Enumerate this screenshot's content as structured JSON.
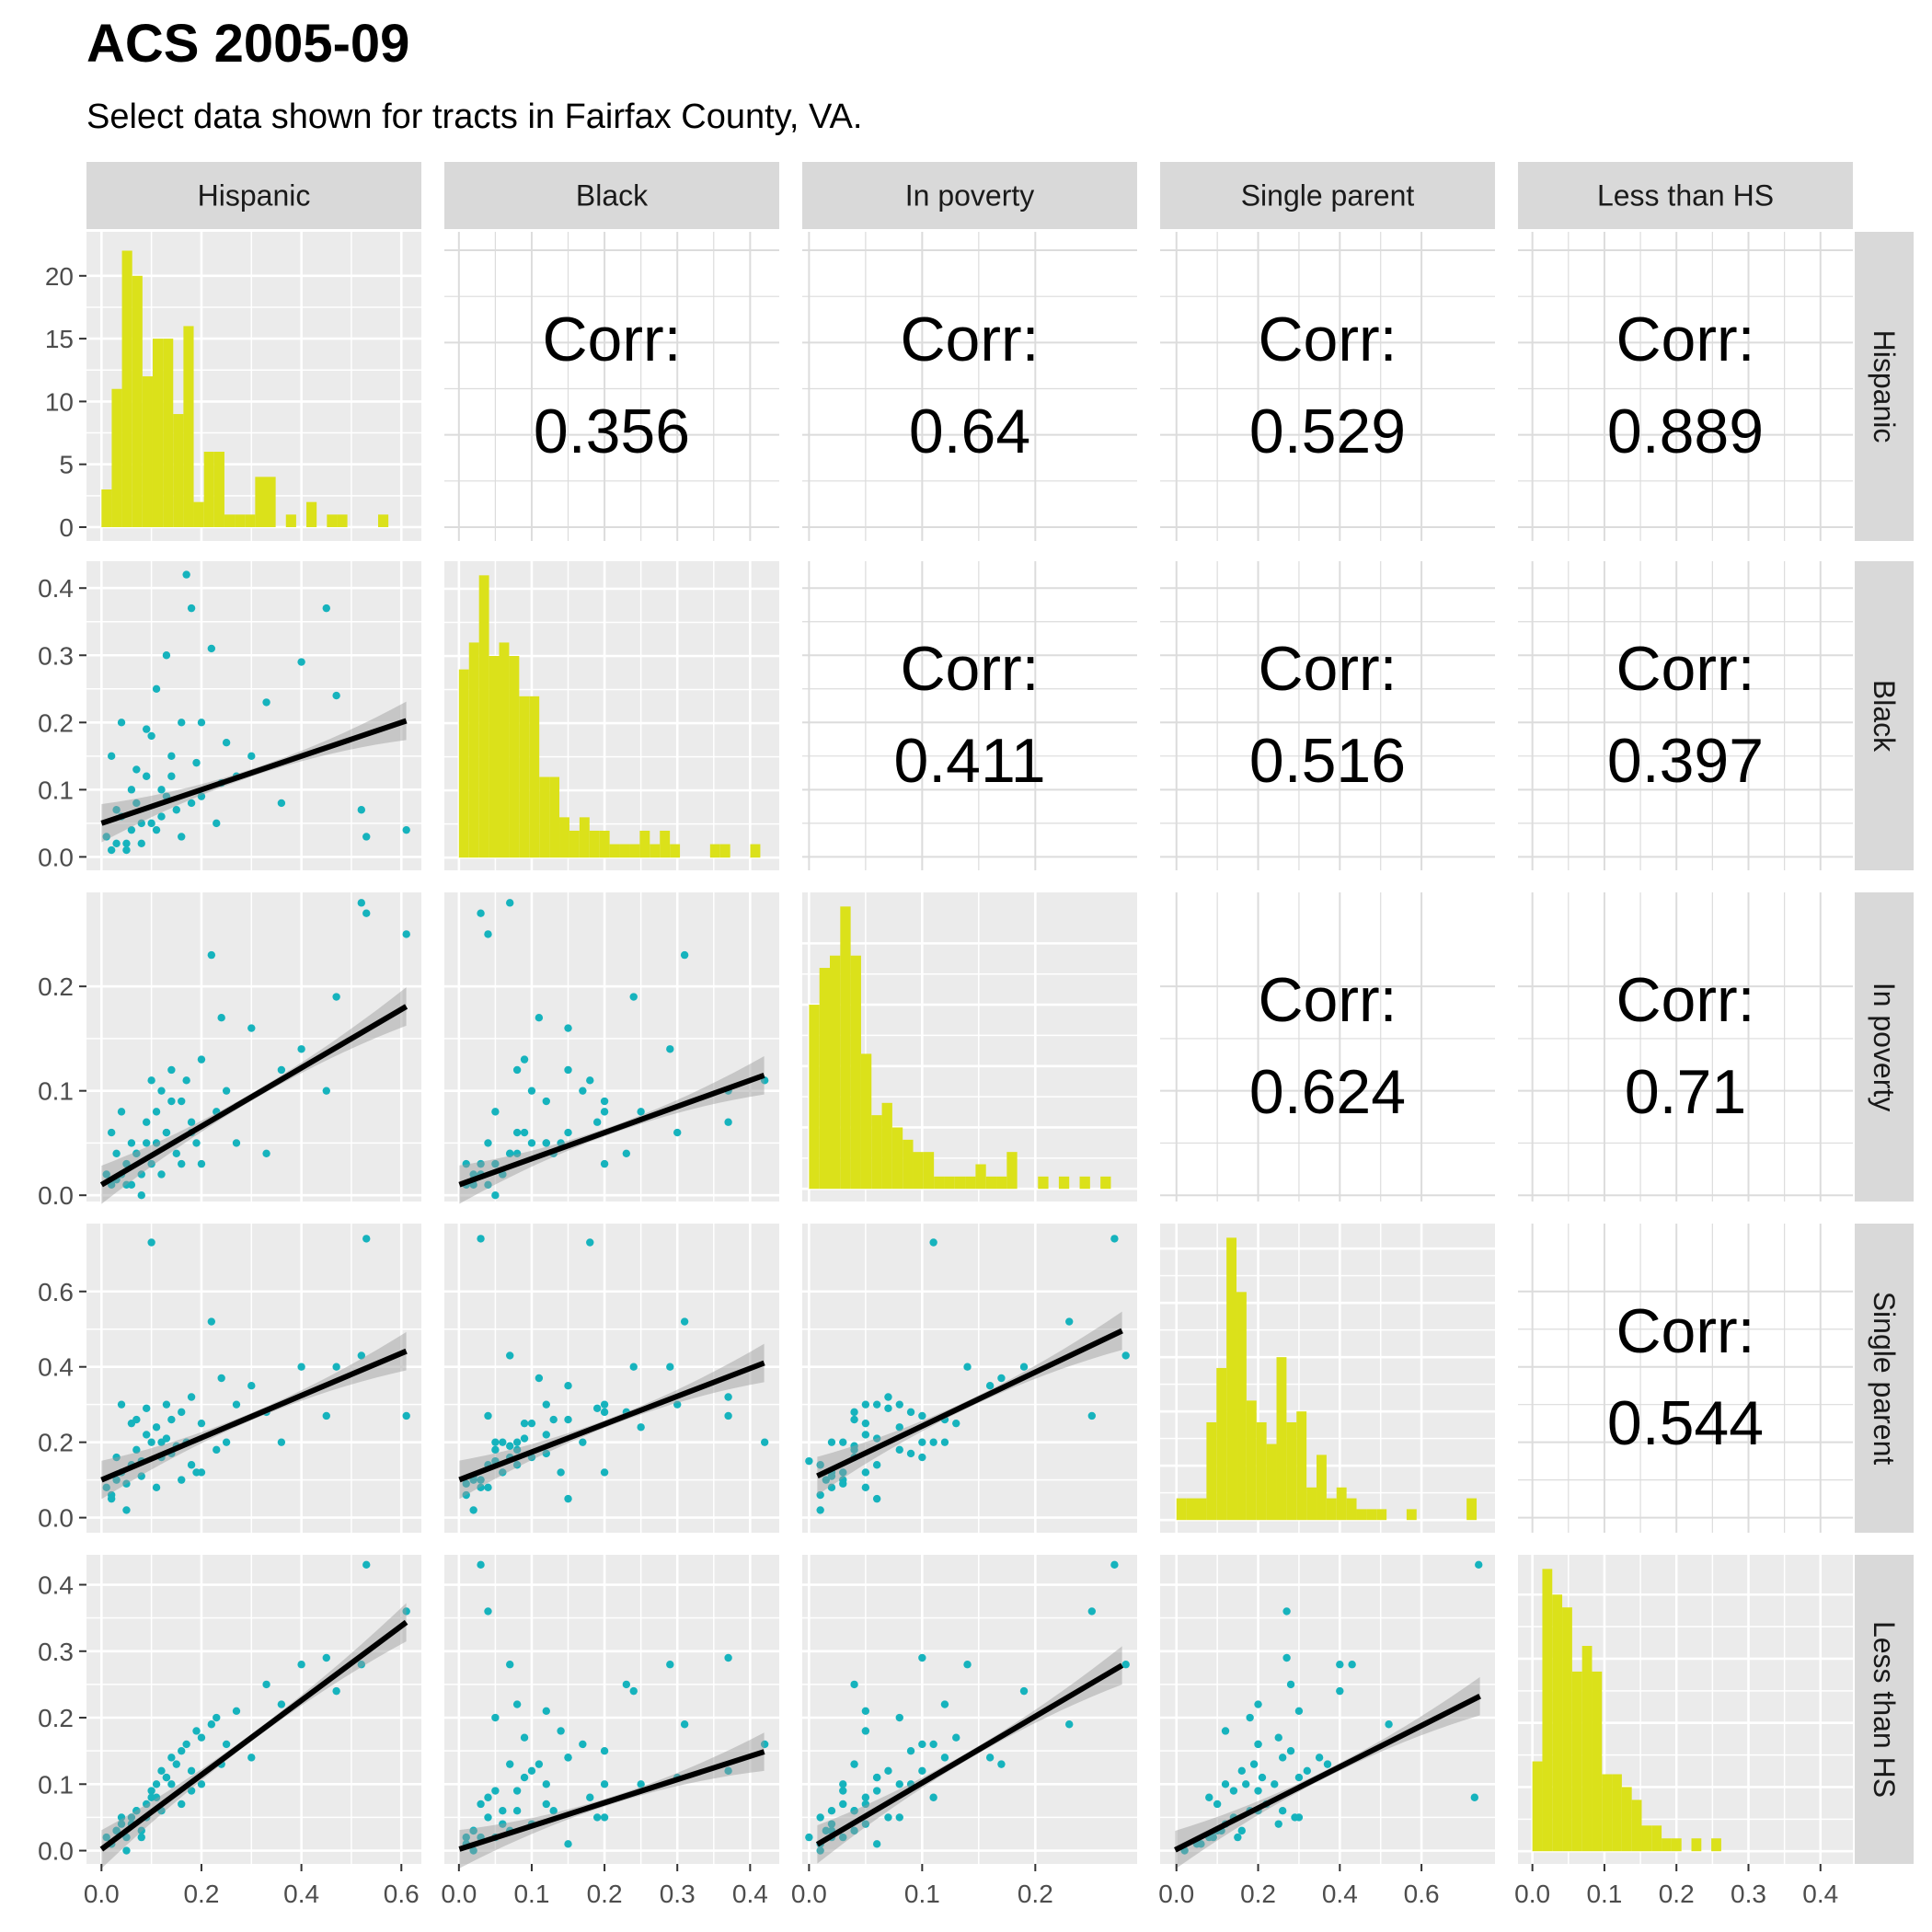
{
  "title": "ACS 2005-09",
  "subtitle": "Select data shown for tracts in Fairfax County, VA.",
  "colors": {
    "histogram": "#dbe11a",
    "points": "#16b3bd",
    "fit_line": "#000000",
    "ci_band": "#999999",
    "panel_bg": "#ebebeb",
    "strip_bg": "#d9d9d9",
    "grid": "#ffffff",
    "corr_grid": "#dcdcdc"
  },
  "chart_data": {
    "type": "scatter-matrix",
    "title": "ACS 2005-09",
    "subtitle": "Select data shown for tracts in Fairfax County, VA.",
    "variables": [
      "Hispanic",
      "Black",
      "In poverty",
      "Single parent",
      "Less than HS"
    ],
    "axis_ranges": [
      [
        -0.03,
        0.64
      ],
      [
        -0.02,
        0.44
      ],
      [
        -0.006,
        0.29
      ],
      [
        -0.04,
        0.78
      ],
      [
        -0.02,
        0.445
      ]
    ],
    "axis_ticks": [
      {
        "values": [
          0,
          0.2,
          0.4,
          0.6
        ],
        "labels": [
          "0.0",
          "0.2",
          "0.4",
          "0.6"
        ]
      },
      {
        "values": [
          0,
          0.1,
          0.2,
          0.3,
          0.4
        ],
        "labels": [
          "0.0",
          "0.1",
          "0.2",
          "0.3",
          "0.4"
        ]
      },
      {
        "values": [
          0,
          0.1,
          0.2
        ],
        "labels": [
          "0.0",
          "0.1",
          "0.2"
        ]
      },
      {
        "values": [
          0,
          0.2,
          0.4,
          0.6
        ],
        "labels": [
          "0.0",
          "0.2",
          "0.4",
          "0.6"
        ]
      },
      {
        "values": [
          0,
          0.1,
          0.2,
          0.3,
          0.4
        ],
        "labels": [
          "0.0",
          "0.1",
          "0.2",
          "0.3",
          "0.4"
        ]
      }
    ],
    "first_histogram_count_axis": {
      "range": [
        -1.1,
        23.5
      ],
      "ticks": [
        0,
        5,
        10,
        15,
        20
      ],
      "labels": [
        "0",
        "5",
        "10",
        "15",
        "20"
      ]
    },
    "correlations": [
      {
        "row": 0,
        "col": 1,
        "label": "Corr:",
        "value": "0.356"
      },
      {
        "row": 0,
        "col": 2,
        "label": "Corr:",
        "value": "0.64"
      },
      {
        "row": 0,
        "col": 3,
        "label": "Corr:",
        "value": "0.529"
      },
      {
        "row": 0,
        "col": 4,
        "label": "Corr:",
        "value": "0.889"
      },
      {
        "row": 1,
        "col": 2,
        "label": "Corr:",
        "value": "0.411"
      },
      {
        "row": 1,
        "col": 3,
        "label": "Corr:",
        "value": "0.516"
      },
      {
        "row": 1,
        "col": 4,
        "label": "Corr:",
        "value": "0.397"
      },
      {
        "row": 2,
        "col": 3,
        "label": "Corr:",
        "value": "0.624"
      },
      {
        "row": 2,
        "col": 4,
        "label": "Corr:",
        "value": "0.71"
      },
      {
        "row": 3,
        "col": 4,
        "label": "Corr:",
        "value": "0.544"
      }
    ],
    "histograms": [
      {
        "variable": "Hispanic",
        "binwidth": 0.0205,
        "start": 0.0,
        "counts": [
          3,
          11,
          22,
          20,
          12,
          15,
          15,
          9,
          16,
          2,
          6,
          6,
          1,
          1,
          1,
          4,
          4,
          0,
          1,
          0,
          2,
          0,
          1,
          1,
          0,
          0,
          0,
          1
        ]
      },
      {
        "variable": "Black",
        "binwidth": 0.0138,
        "start": 0.0,
        "counts": [
          14,
          16,
          21,
          15,
          16,
          15,
          12,
          12,
          6,
          6,
          3,
          2,
          3,
          2,
          2,
          1,
          1,
          1,
          2,
          1,
          2,
          1,
          0,
          0,
          0,
          1,
          1,
          0,
          0,
          1
        ]
      },
      {
        "variable": "In poverty",
        "binwidth": 0.0092,
        "start": 0.0,
        "counts": [
          15,
          18,
          19,
          23,
          19,
          11,
          6,
          7,
          5,
          4,
          3,
          3,
          1,
          1,
          1,
          1,
          2,
          1,
          1,
          3,
          0,
          0,
          1,
          0,
          1,
          0,
          1,
          0,
          1,
          0
        ]
      },
      {
        "variable": "Single parent",
        "binwidth": 0.0245,
        "start": 0.0,
        "counts": [
          2,
          2,
          2,
          9,
          14,
          26,
          21,
          11,
          9,
          7,
          15,
          9,
          10,
          3,
          6,
          2,
          3,
          2,
          1,
          1,
          1,
          0,
          0,
          1,
          0,
          0,
          0,
          0,
          0,
          2
        ]
      },
      {
        "variable": "Less than HS",
        "binwidth": 0.0138,
        "start": 0.0,
        "counts": [
          7,
          22,
          20,
          19,
          14,
          16,
          14,
          6,
          6,
          5,
          4,
          2,
          2,
          1,
          1,
          0,
          1,
          0,
          1,
          0,
          0,
          0,
          0,
          0,
          0,
          0,
          0,
          0,
          0,
          0,
          0,
          0
        ]
      }
    ],
    "regression": {
      "method": "lm",
      "ci_shown": true,
      "intercept": [
        0,
        0.05,
        0.01,
        0.1,
        0.002
      ],
      "slope": [
        [
          1,
          0.25,
          0.28,
          0.56,
          0.56
        ],
        [
          0.24,
          1,
          0.25,
          0.74,
          0.35
        ],
        [
          0.55,
          0.65,
          1,
          1.43,
          1.0
        ],
        [
          0.23,
          0.23,
          0.15,
          1,
          0.31
        ],
        [
          1.05,
          0.42,
          0.42,
          0.59,
          1
        ]
      ]
    },
    "points": [
      [
        0.01,
        0.03,
        0.02,
        0.08,
        0.02
      ],
      [
        0.02,
        0.01,
        0.01,
        0.06,
        0.01
      ],
      [
        0.03,
        0.02,
        0.015,
        0.1,
        0.03
      ],
      [
        0.04,
        0.06,
        0.02,
        0.12,
        0.04
      ],
      [
        0.05,
        0.01,
        0.03,
        0.09,
        0.02
      ],
      [
        0.06,
        0.04,
        0.01,
        0.14,
        0.05
      ],
      [
        0.07,
        0.08,
        0.04,
        0.18,
        0.06
      ],
      [
        0.08,
        0.02,
        0.02,
        0.11,
        0.03
      ],
      [
        0.09,
        0.12,
        0.05,
        0.22,
        0.07
      ],
      [
        0.1,
        0.05,
        0.03,
        0.2,
        0.09
      ],
      [
        0.11,
        0.25,
        0.08,
        0.24,
        0.1
      ],
      [
        0.12,
        0.1,
        0.1,
        0.16,
        0.12
      ],
      [
        0.13,
        0.3,
        0.06,
        0.3,
        0.11
      ],
      [
        0.14,
        0.15,
        0.12,
        0.26,
        0.14
      ],
      [
        0.15,
        0.07,
        0.04,
        0.19,
        0.13
      ],
      [
        0.16,
        0.2,
        0.09,
        0.28,
        0.15
      ],
      [
        0.17,
        0.42,
        0.11,
        0.2,
        0.16
      ],
      [
        0.18,
        0.37,
        0.07,
        0.32,
        0.12
      ],
      [
        0.19,
        0.14,
        0.05,
        0.12,
        0.18
      ],
      [
        0.2,
        0.09,
        0.13,
        0.25,
        0.17
      ],
      [
        0.22,
        0.31,
        0.23,
        0.52,
        0.19
      ],
      [
        0.23,
        0.05,
        0.08,
        0.18,
        0.2
      ],
      [
        0.25,
        0.17,
        0.1,
        0.2,
        0.16
      ],
      [
        0.27,
        0.12,
        0.05,
        0.3,
        0.21
      ],
      [
        0.3,
        0.15,
        0.16,
        0.35,
        0.14
      ],
      [
        0.33,
        0.23,
        0.04,
        0.28,
        0.25
      ],
      [
        0.36,
        0.08,
        0.12,
        0.2,
        0.22
      ],
      [
        0.4,
        0.29,
        0.14,
        0.4,
        0.28
      ],
      [
        0.45,
        0.37,
        0.1,
        0.27,
        0.29
      ],
      [
        0.47,
        0.24,
        0.19,
        0.4,
        0.24
      ],
      [
        0.52,
        0.07,
        0.28,
        0.43,
        0.28
      ],
      [
        0.53,
        0.03,
        0.27,
        0.74,
        0.43
      ],
      [
        0.61,
        0.04,
        0.25,
        0.27,
        0.36
      ],
      [
        0.02,
        0.15,
        0.06,
        0.05,
        0.01
      ],
      [
        0.04,
        0.2,
        0.08,
        0.3,
        0.05
      ],
      [
        0.06,
        0.1,
        0.05,
        0.25,
        0.04
      ],
      [
        0.08,
        0.05,
        0.0,
        0.15,
        0.02
      ],
      [
        0.1,
        0.18,
        0.11,
        0.73,
        0.08
      ],
      [
        0.12,
        0.06,
        0.02,
        0.2,
        0.06
      ],
      [
        0.14,
        0.12,
        0.09,
        0.17,
        0.1
      ],
      [
        0.16,
        0.03,
        0.03,
        0.1,
        0.07
      ],
      [
        0.18,
        0.08,
        0.06,
        0.14,
        0.09
      ],
      [
        0.05,
        0.02,
        0.01,
        0.02,
        0.0
      ],
      [
        0.03,
        0.07,
        0.04,
        0.16,
        0.03
      ],
      [
        0.09,
        0.19,
        0.07,
        0.29,
        0.05
      ],
      [
        0.11,
        0.04,
        0.05,
        0.08,
        0.08
      ],
      [
        0.13,
        0.09,
        0.06,
        0.21,
        0.11
      ],
      [
        0.2,
        0.2,
        0.03,
        0.12,
        0.1
      ],
      [
        0.24,
        0.11,
        0.17,
        0.37,
        0.13
      ],
      [
        0.07,
        0.13,
        0.04,
        0.26,
        0.06
      ]
    ]
  }
}
